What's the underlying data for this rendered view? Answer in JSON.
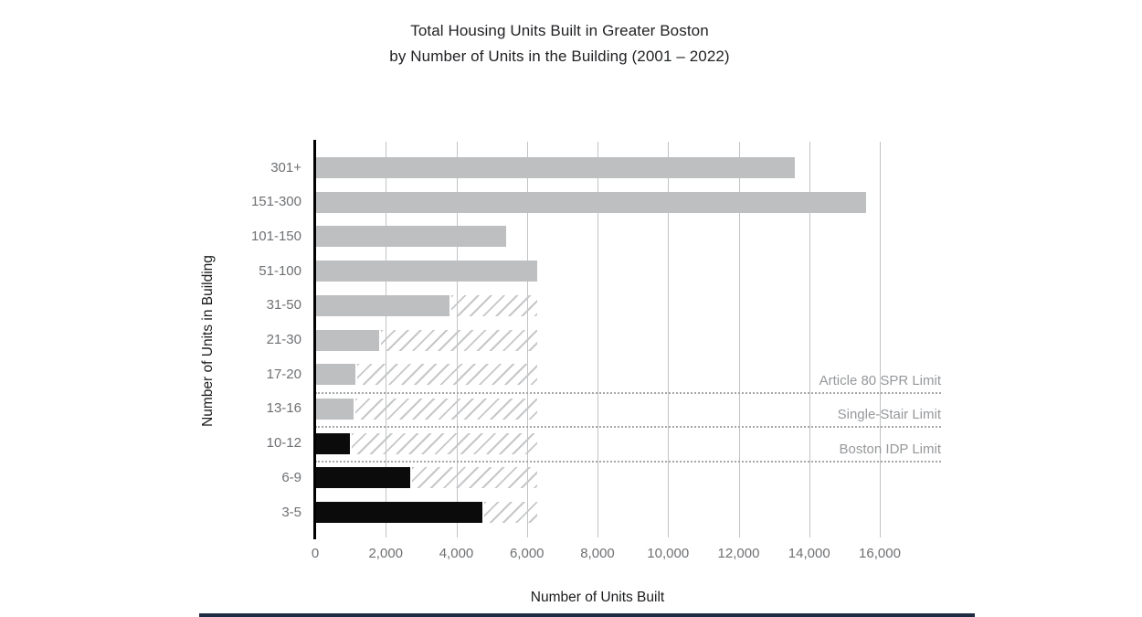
{
  "title": {
    "line1": "Total Housing Units Built in Greater Boston",
    "line2": "by Number of Units in the Building (2001 – 2022)"
  },
  "chart_data": {
    "type": "bar",
    "orientation": "horizontal",
    "title": "Total Housing Units Built in Greater Boston by Number of Units in the Building (2001 – 2022)",
    "xlabel": "Number of Units Built",
    "ylabel": "Number of Units in Building",
    "xlim": [
      0,
      16000
    ],
    "grid": "vertical-only",
    "x_ticks": [
      0,
      2000,
      4000,
      6000,
      8000,
      10000,
      12000,
      14000,
      16000
    ],
    "x_tick_labels": [
      "0",
      "2,000",
      "4,000",
      "6,000",
      "8,000",
      "10,000",
      "12,000",
      "14,000",
      "16,000"
    ],
    "categories": [
      "301+",
      "151-300",
      "101-150",
      "51-100",
      "31-50",
      "21-30",
      "17-20",
      "13-16",
      "10-12",
      "6-9",
      "3-5"
    ],
    "series": [
      {
        "name": "Units built",
        "values": [
          13600,
          15600,
          5400,
          6300,
          3800,
          1800,
          1150,
          1080,
          980,
          2700,
          4750
        ]
      }
    ],
    "bar_color_keys": [
      "gray",
      "gray",
      "gray",
      "gray",
      "gray",
      "gray",
      "gray",
      "gray",
      "black",
      "black",
      "black"
    ],
    "hatched_extension_to": [
      null,
      null,
      null,
      null,
      6300,
      6300,
      6300,
      6300,
      6300,
      6300,
      6300
    ],
    "limit_lines": [
      {
        "label": "Article 80 SPR Limit",
        "after_category": "17-20"
      },
      {
        "label": "Single-Stair Limit",
        "after_category": "13-16"
      },
      {
        "label": "Boston IDP Limit",
        "after_category": "10-12"
      }
    ],
    "colors": {
      "gray": "#bdbfc1",
      "black": "#0b0b0c",
      "hatch": "#c6c7c9",
      "gridline": "#c2c3c5",
      "dotted_line": "#a6a7a9",
      "axis": "#000000",
      "tick_text": "#6e7073",
      "limit_text": "#96989b",
      "title_text": "#212225"
    }
  },
  "footer": {
    "strip_color": "#202c44"
  }
}
